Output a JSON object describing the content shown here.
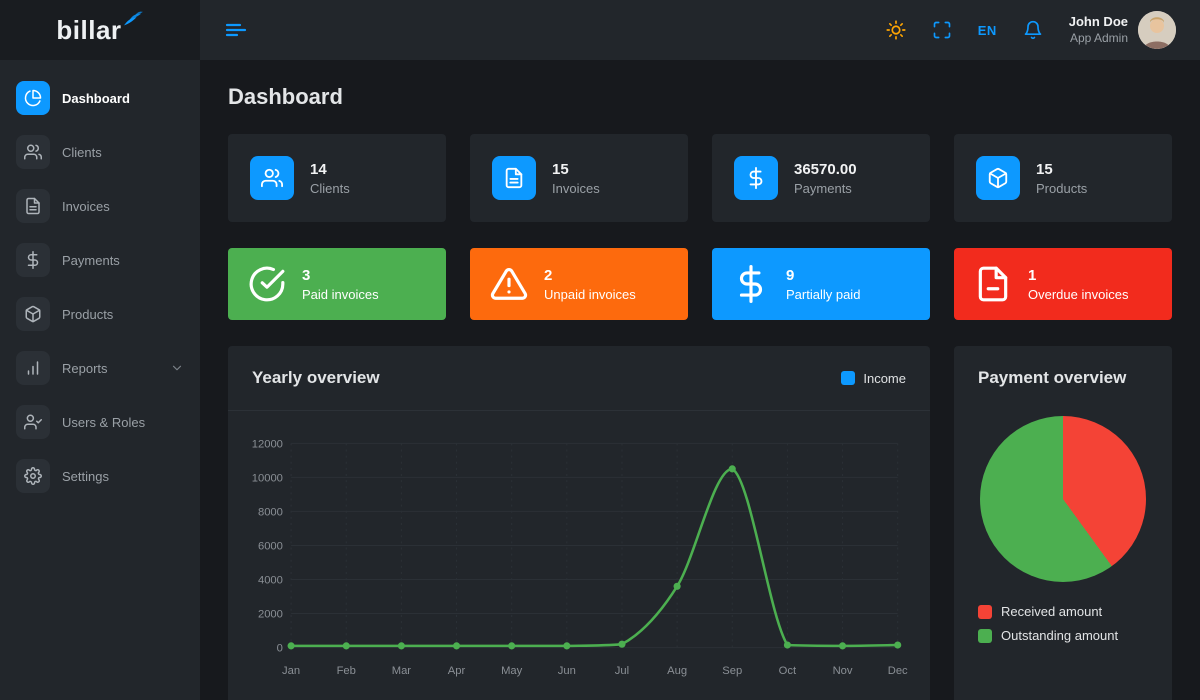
{
  "theme": {
    "accent": "#0d99ff",
    "sun_color": "#ffa502",
    "panel": "#22262b",
    "background": "#17191d"
  },
  "brand": {
    "name": "billar"
  },
  "topbar": {
    "language": "EN"
  },
  "user": {
    "name": "John Doe",
    "role": "App Admin"
  },
  "page": {
    "title": "Dashboard"
  },
  "sidebar": {
    "items": [
      {
        "label": "Dashboard",
        "icon": "pie-chart-icon",
        "active": true
      },
      {
        "label": "Clients",
        "icon": "users-icon"
      },
      {
        "label": "Invoices",
        "icon": "file-text-icon"
      },
      {
        "label": "Payments",
        "icon": "dollar-icon"
      },
      {
        "label": "Products",
        "icon": "box-icon"
      },
      {
        "label": "Reports",
        "icon": "bar-chart-icon",
        "has_submenu": true
      },
      {
        "label": "Users & Roles",
        "icon": "user-check-icon"
      },
      {
        "label": "Settings",
        "icon": "gear-icon"
      }
    ]
  },
  "stat_cards": [
    {
      "value": "14",
      "label": "Clients",
      "icon": "users-icon"
    },
    {
      "value": "15",
      "label": "Invoices",
      "icon": "file-text-icon"
    },
    {
      "value": "36570.00",
      "label": "Payments",
      "icon": "dollar-icon"
    },
    {
      "value": "15",
      "label": "Products",
      "icon": "box-icon"
    }
  ],
  "status_cards": [
    {
      "value": "3",
      "label": "Paid invoices",
      "color": "#4caf50",
      "icon": "check-circle-icon"
    },
    {
      "value": "2",
      "label": "Unpaid invoices",
      "color": "#fd6a0d",
      "icon": "alert-triangle-icon"
    },
    {
      "value": "9",
      "label": "Partially paid",
      "color": "#0d99ff",
      "icon": "dollar-icon"
    },
    {
      "value": "1",
      "label": "Overdue invoices",
      "color": "#f22b1d",
      "icon": "file-minus-icon"
    }
  ],
  "chart_data": [
    {
      "type": "line",
      "title": "Yearly overview",
      "x": [
        "Jan",
        "Feb",
        "Mar",
        "Apr",
        "May",
        "Jun",
        "Jul",
        "Aug",
        "Sep",
        "Oct",
        "Nov",
        "Dec"
      ],
      "series": [
        {
          "name": "Income",
          "values": [
            100,
            100,
            100,
            100,
            100,
            100,
            200,
            3600,
            10500,
            150,
            100,
            150
          ]
        }
      ],
      "ylim": [
        0,
        12000
      ],
      "yticks": [
        0,
        2000,
        4000,
        6000,
        8000,
        10000,
        12000
      ],
      "grid": true,
      "legend_position": "top-right",
      "line_color": "#4caf50",
      "legend_swatch_color": "#0d99ff"
    },
    {
      "type": "pie",
      "title": "Payment overview",
      "slices": [
        {
          "label": "Received amount",
          "color": "#f44336",
          "value": 40
        },
        {
          "label": "Outstanding amount",
          "color": "#4caf50",
          "value": 60
        }
      ]
    }
  ]
}
